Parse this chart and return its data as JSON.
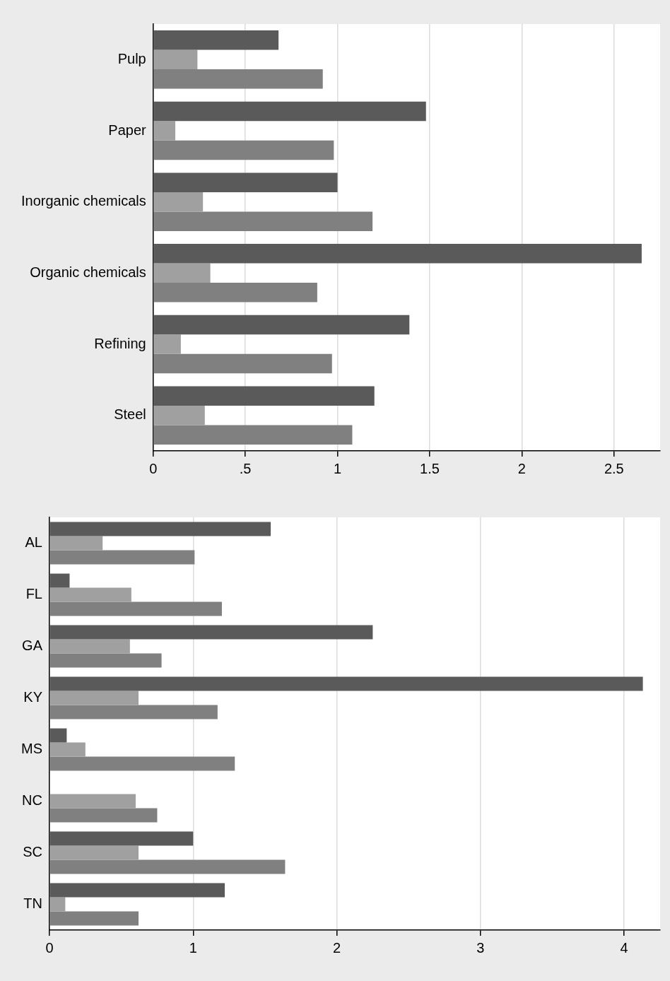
{
  "chart_data": [
    {
      "type": "bar",
      "orientation": "horizontal",
      "categories": [
        "Pulp",
        "Paper",
        "Inorganic chemicals",
        "Organic chemicals",
        "Refining",
        "Steel"
      ],
      "series": [
        {
          "color": "#5a5a5a",
          "values": [
            0.68,
            1.48,
            1.0,
            2.65,
            1.39,
            1.2
          ]
        },
        {
          "color": "#a0a0a0",
          "values": [
            0.24,
            0.12,
            0.27,
            0.31,
            0.15,
            0.28
          ]
        },
        {
          "color": "#808080",
          "values": [
            0.92,
            0.98,
            1.19,
            0.89,
            0.97,
            1.08
          ]
        }
      ],
      "xlim": [
        0,
        2.75
      ],
      "xticks": [
        0,
        {
          "value": 0.5,
          "label": ".5"
        },
        1,
        1.5,
        2,
        2.5
      ],
      "grid": "x",
      "legend": false
    },
    {
      "type": "bar",
      "orientation": "horizontal",
      "categories": [
        "AL",
        "FL",
        "GA",
        "KY",
        "MS",
        "NC",
        "SC",
        "TN"
      ],
      "series": [
        {
          "color": "#5a5a5a",
          "values": [
            1.54,
            0.14,
            2.25,
            4.13,
            0.12,
            null,
            1.0,
            1.22
          ]
        },
        {
          "color": "#a0a0a0",
          "values": [
            0.37,
            0.57,
            0.56,
            0.62,
            0.25,
            0.6,
            0.62,
            0.11
          ]
        },
        {
          "color": "#808080",
          "values": [
            1.01,
            1.2,
            0.78,
            1.17,
            1.29,
            0.75,
            1.64,
            0.62
          ]
        }
      ],
      "xlim": [
        0,
        4.25
      ],
      "xticks": [
        0,
        1,
        2,
        3,
        4
      ],
      "grid": "x",
      "legend": false
    }
  ]
}
